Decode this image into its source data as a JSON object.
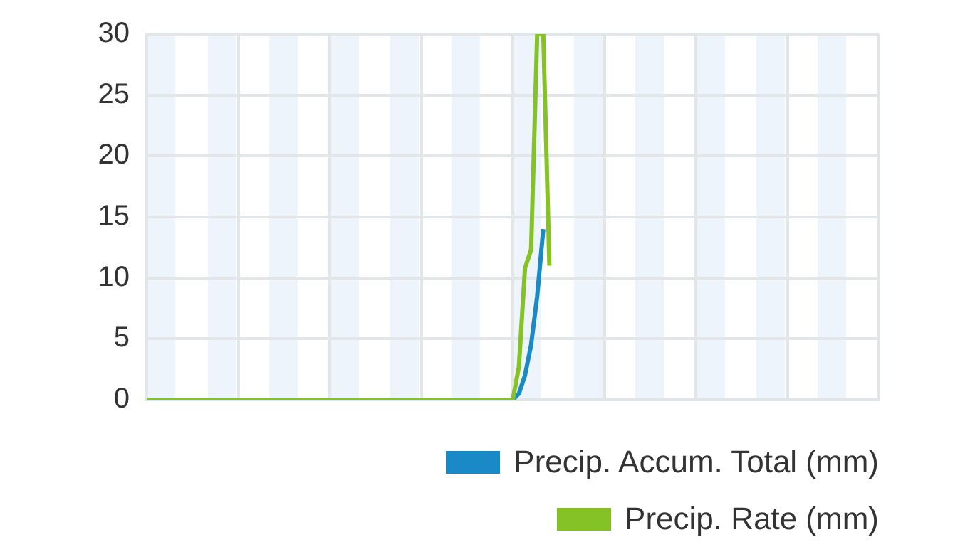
{
  "chart_data": {
    "type": "line",
    "categories": [
      null,
      null,
      null,
      null,
      null,
      null,
      null,
      null,
      null,
      null,
      null,
      null,
      null,
      null,
      null,
      null,
      null,
      null,
      null,
      null,
      null,
      null,
      null,
      null,
      null,
      null,
      null,
      null,
      null,
      null,
      null,
      null,
      null,
      null,
      null,
      null,
      null,
      null,
      null,
      null,
      null,
      null,
      null,
      null,
      null,
      null,
      null,
      null,
      null,
      null,
      null,
      null,
      null,
      null,
      null,
      null,
      null,
      null,
      null,
      null,
      null,
      null,
      null,
      null,
      null,
      null,
      null,
      null,
      null,
      null,
      null,
      null,
      null,
      null,
      null,
      null,
      null,
      null,
      null,
      null,
      null,
      null,
      null,
      null,
      null,
      null,
      null,
      null,
      null,
      null,
      null,
      null,
      null,
      null,
      null,
      null,
      null,
      null,
      null,
      null,
      null,
      null,
      null,
      null,
      null,
      null,
      null,
      null,
      null,
      null,
      null,
      null,
      null,
      null,
      null,
      null,
      null,
      null,
      null,
      null,
      null
    ],
    "ylim": [
      0,
      30
    ],
    "yticks": [
      0,
      5,
      10,
      15,
      20,
      25,
      30
    ],
    "tick_labels": "y",
    "grid": true,
    "legend": "bottom right",
    "series": [
      {
        "name": "Precip. Accum. Total (mm)",
        "color": "#1a8ac6",
        "values": [
          null,
          null,
          null,
          null,
          null,
          null,
          null,
          null,
          null,
          null,
          null,
          null,
          null,
          null,
          null,
          null,
          null,
          null,
          null,
          null,
          null,
          null,
          null,
          null,
          null,
          null,
          null,
          null,
          null,
          null,
          null,
          null,
          null,
          null,
          null,
          null,
          null,
          null,
          null,
          null,
          null,
          null,
          null,
          null,
          null,
          null,
          null,
          null,
          null,
          null,
          null,
          null,
          null,
          null,
          null,
          null,
          null,
          null,
          null,
          null,
          0,
          0.5,
          2,
          4.5,
          8.5,
          14,
          null,
          null,
          null,
          null,
          null,
          null,
          null,
          null,
          null,
          null,
          null,
          null,
          null,
          null,
          null,
          null,
          null,
          null,
          null,
          null,
          null,
          null,
          null,
          null,
          null,
          null,
          null,
          null,
          null,
          null,
          null,
          null,
          null,
          null,
          null,
          null,
          null,
          null,
          null,
          null,
          null,
          null,
          null,
          null,
          null,
          null,
          null,
          null,
          null,
          null,
          null,
          null,
          null,
          null,
          null
        ]
      },
      {
        "name": "Precip. Rate (mm)",
        "color": "#84c225",
        "values": [
          0,
          0,
          0,
          0,
          0,
          0,
          0,
          0,
          0,
          0,
          0,
          0,
          0,
          0,
          0,
          0,
          0,
          0,
          0,
          0,
          0,
          0,
          0,
          0,
          0,
          0,
          0,
          0,
          0,
          0,
          0,
          0,
          0,
          0,
          0,
          0,
          0,
          0,
          0,
          0,
          0,
          0,
          0,
          0,
          0,
          0,
          0,
          0,
          0,
          0,
          0,
          0,
          0,
          0,
          0,
          0,
          0,
          0,
          0,
          0,
          0,
          2.7,
          10.8,
          12.3,
          30,
          30,
          11,
          null,
          null,
          null,
          null,
          null,
          null,
          null,
          null,
          null,
          null,
          null,
          null,
          null,
          null,
          null,
          null,
          null,
          null,
          null,
          null,
          null,
          null,
          null,
          null,
          null,
          null,
          null,
          null,
          null,
          null,
          null,
          null,
          null,
          null,
          null,
          null,
          null,
          null,
          null,
          null,
          null,
          null,
          null,
          null,
          null,
          null,
          null,
          null,
          null,
          null,
          null,
          null,
          null,
          null
        ]
      }
    ]
  }
}
